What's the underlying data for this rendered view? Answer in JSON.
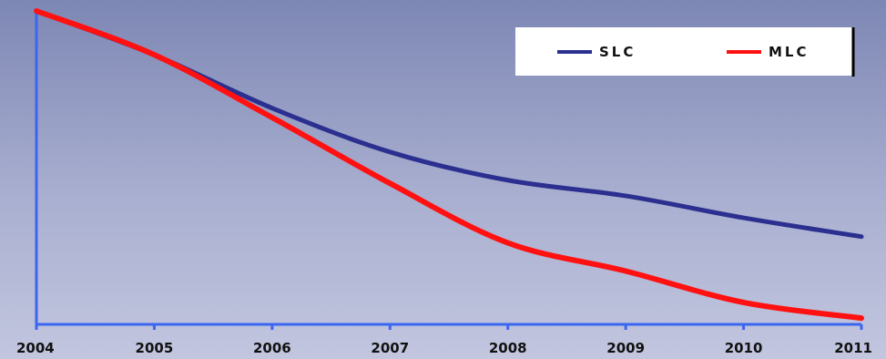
{
  "chart_data": {
    "type": "line",
    "x": [
      "2004",
      "2005",
      "2006",
      "2007",
      "2008",
      "2009",
      "2010",
      "2011"
    ],
    "ylim": [
      0,
      1
    ],
    "grid": false,
    "legend_position": "top-right",
    "series": [
      {
        "name": "SLC",
        "color": "#2b2f8f",
        "values": [
          1.0,
          0.86,
          0.69,
          0.55,
          0.46,
          0.41,
          0.34,
          0.28
        ]
      },
      {
        "name": "MLC",
        "color": "#ff1111",
        "values": [
          1.0,
          0.86,
          0.66,
          0.45,
          0.26,
          0.17,
          0.07,
          0.02
        ]
      }
    ]
  },
  "colors": {
    "axis": "#3a66f0",
    "background": "#8f97c2"
  }
}
